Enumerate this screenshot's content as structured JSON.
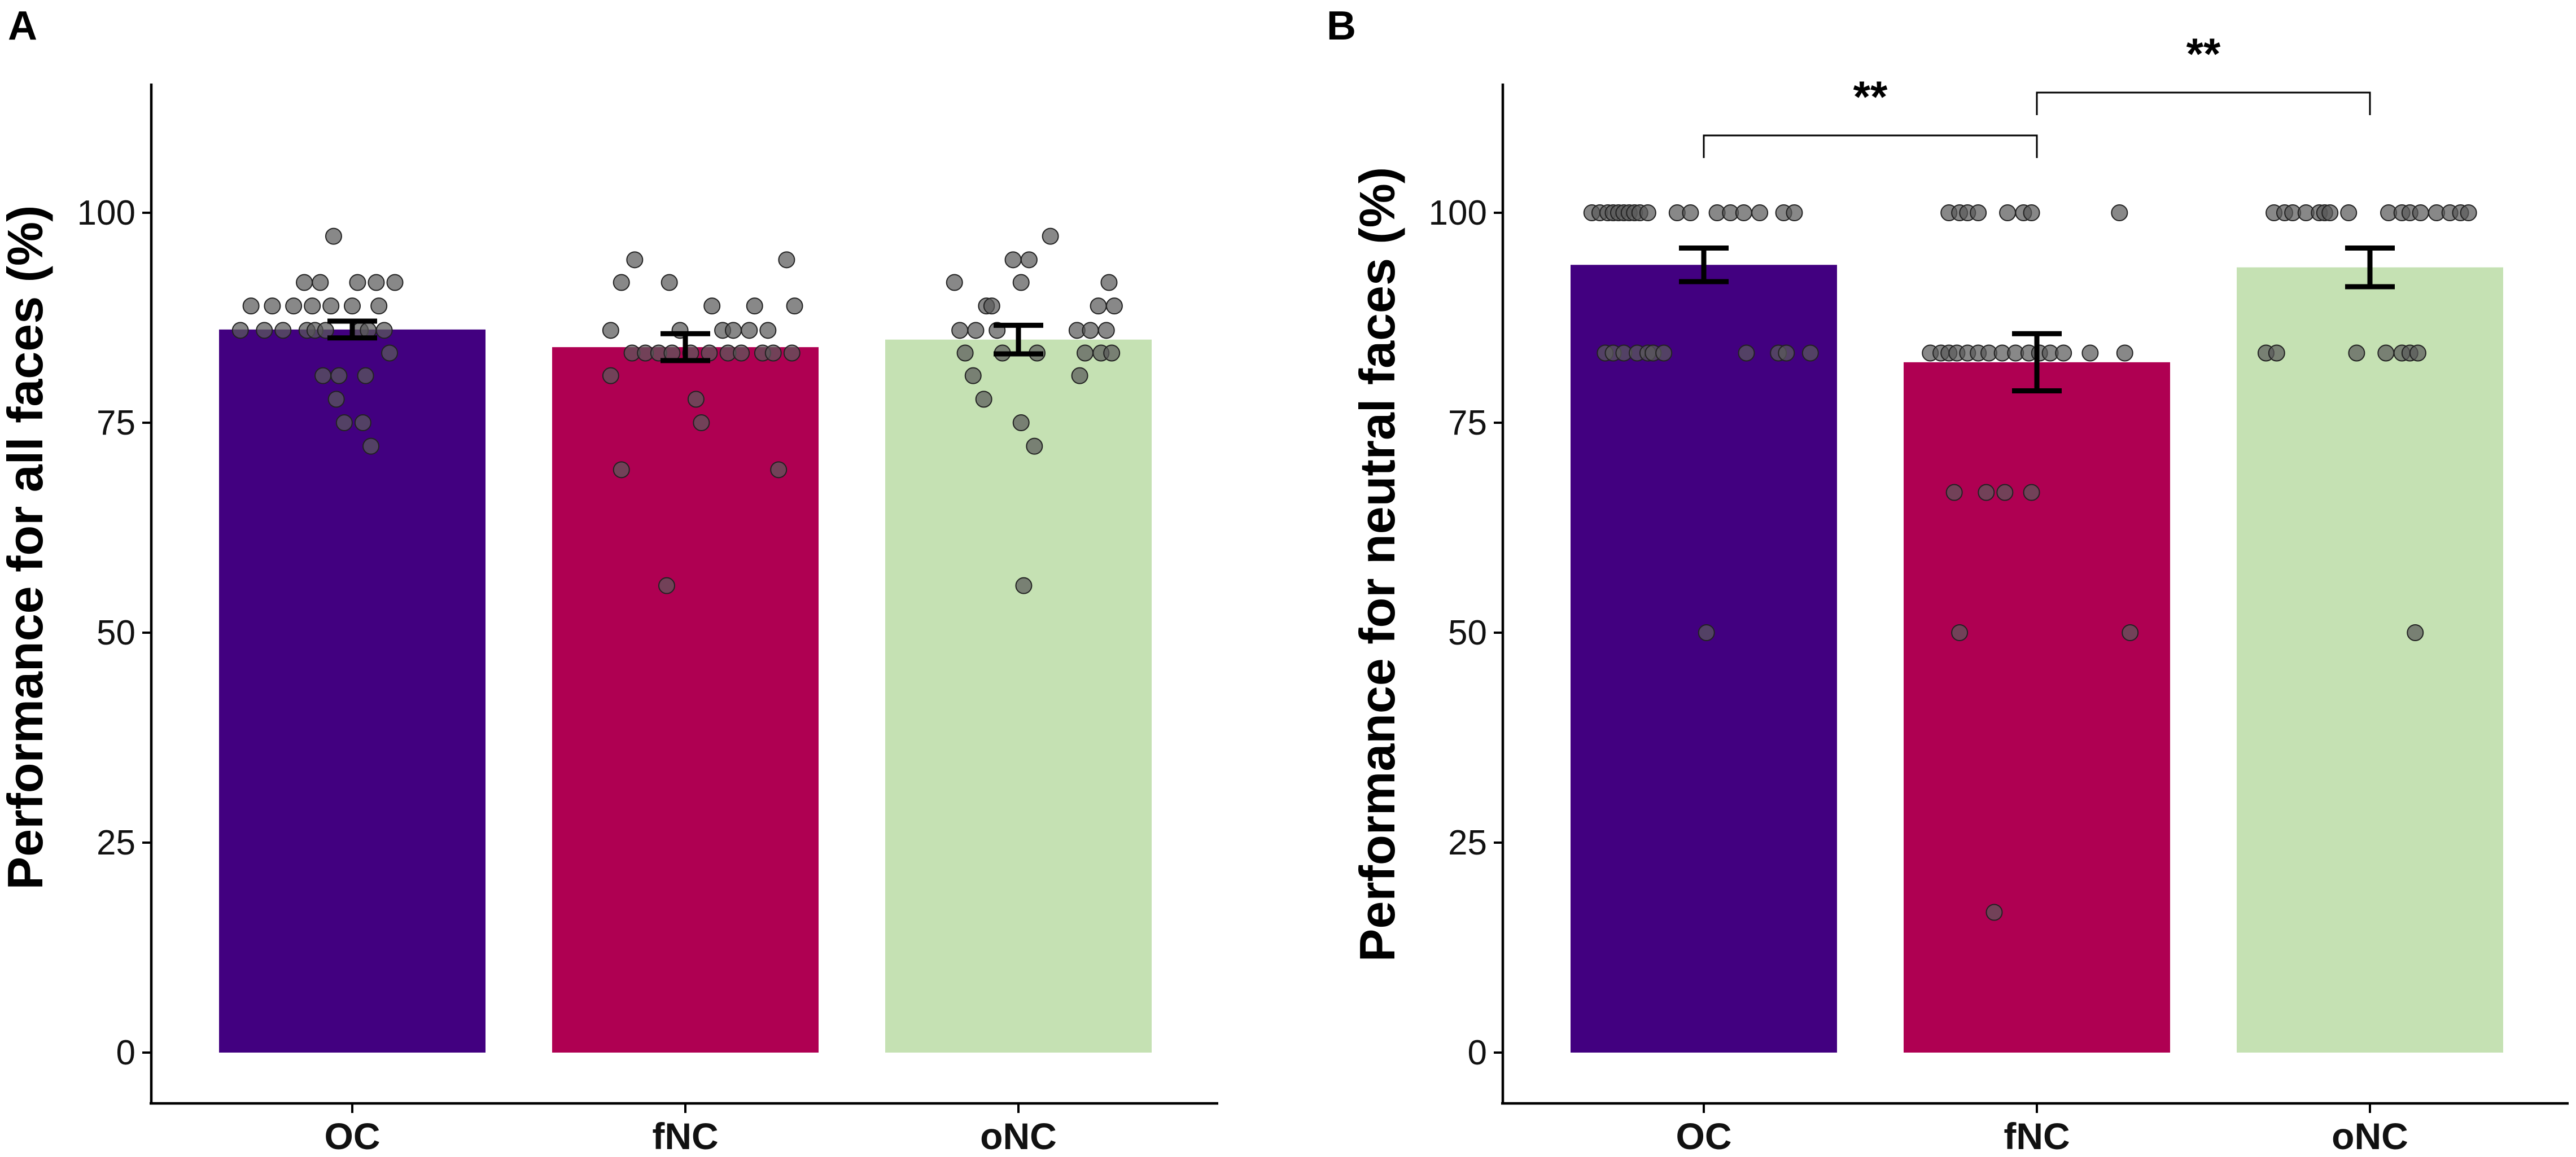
{
  "chart_data": [
    {
      "type": "bar",
      "panel": "A",
      "categories": [
        "OC",
        "fNC",
        "oNC"
      ],
      "values": [
        86.1,
        84.0,
        84.9
      ],
      "errors": [
        [
          85.1,
          87.1
        ],
        [
          82.4,
          85.6
        ],
        [
          83.2,
          86.6
        ]
      ],
      "colors": [
        "#420080",
        "#af0052",
        "#c5e1b3"
      ],
      "xlabel": "",
      "ylabel": "Performance for all faces (%)",
      "ylim": [
        0,
        115
      ],
      "yticks": [
        0,
        25,
        50,
        75,
        100
      ],
      "points": [
        [
          86,
          88.9,
          86,
          88.9,
          86,
          88.9,
          91.7,
          86,
          88.9,
          86,
          91.7,
          86,
          88.9,
          97.2,
          80.6,
          77.8,
          80.6,
          75,
          88.9,
          91.7,
          86,
          75,
          80.6,
          86,
          72.2,
          91.7,
          88.9,
          86,
          83.3,
          91.7
        ],
        [
          86,
          91.7,
          80.6,
          83.3,
          83.3,
          94.4,
          83.3,
          91.7,
          69.4,
          55.6,
          83.3,
          86,
          77.8,
          83.3,
          75,
          83.3,
          88.9,
          86,
          83.3,
          86,
          83.3,
          86,
          88.9,
          83.3,
          86,
          83.3,
          69.4,
          94.4,
          83.3,
          88.9
        ],
        [
          91.7,
          86,
          83.3,
          86,
          80.6,
          88.9,
          77.8,
          88.9,
          86,
          83.3,
          94.4,
          91.7,
          75,
          94.4,
          72.2,
          55.6,
          83.3,
          97.2,
          86,
          80.6,
          83.3,
          86,
          88.9,
          83.3,
          86,
          91.7,
          83.3,
          88.9
        ]
      ],
      "point_x_offsets": [
        [
          -0.42,
          -0.38,
          -0.33,
          -0.3,
          -0.26,
          -0.22,
          -0.18,
          -0.17,
          -0.15,
          -0.14,
          -0.12,
          -0.1,
          -0.08,
          -0.07,
          -0.11,
          -0.06,
          -0.05,
          -0.03,
          0,
          0.02,
          0.03,
          0.04,
          0.05,
          0.06,
          0.07,
          0.09,
          0.1,
          0.12,
          0.14,
          0.16
        ],
        [
          -0.28,
          -0.24,
          -0.28,
          -0.2,
          -0.15,
          -0.19,
          -0.1,
          -0.06,
          -0.24,
          -0.07,
          -0.05,
          -0.02,
          0.04,
          0.02,
          0.06,
          0.09,
          0.1,
          0.14,
          0.16,
          0.18,
          0.21,
          0.24,
          0.26,
          0.29,
          0.31,
          0.33,
          0.35,
          0.38,
          0.4,
          0.41
        ],
        [
          -0.24,
          -0.22,
          -0.2,
          -0.16,
          -0.17,
          -0.12,
          -0.13,
          -0.1,
          -0.08,
          -0.06,
          -0.02,
          0.01,
          0.01,
          0.04,
          0.06,
          0.02,
          0.07,
          0.12,
          0.22,
          0.23,
          0.25,
          0.27,
          0.3,
          0.31,
          0.33,
          0.34,
          0.35,
          0.36
        ]
      ],
      "significance": []
    },
    {
      "type": "bar",
      "panel": "B",
      "categories": [
        "OC",
        "fNC",
        "oNC"
      ],
      "values": [
        93.8,
        82.2,
        93.5
      ],
      "errors": [
        [
          91.8,
          95.8
        ],
        [
          78.8,
          85.6
        ],
        [
          91.2,
          95.8
        ]
      ],
      "colors": [
        "#420080",
        "#af0052",
        "#c5e1b3"
      ],
      "xlabel": "",
      "ylabel": "Performance for neutral faces (%)",
      "ylim": [
        0,
        115
      ],
      "yticks": [
        0,
        25,
        50,
        75,
        100
      ],
      "points": [
        [
          100,
          100,
          100,
          100,
          100,
          100,
          100,
          100,
          100,
          100,
          100,
          100,
          100,
          100,
          100,
          100,
          83.3,
          83.3,
          83.3,
          83.3,
          83.3,
          83.3,
          83.3,
          83.3,
          83.3,
          83.3,
          50,
          100,
          100,
          83.3
        ],
        [
          100,
          100,
          100,
          100,
          100,
          100,
          100,
          83.3,
          83.3,
          83.3,
          83.3,
          83.3,
          83.3,
          83.3,
          83.3,
          83.3,
          83.3,
          83.3,
          83.3,
          83.3,
          83.3,
          66.7,
          66.7,
          66.7,
          66.7,
          50,
          50,
          16.7,
          83.3,
          100
        ],
        [
          100,
          100,
          100,
          100,
          100,
          100,
          100,
          100,
          100,
          100,
          100,
          100,
          100,
          100,
          83.3,
          83.3,
          83.3,
          83.3,
          83.3,
          83.3,
          83.3,
          50,
          100,
          100
        ]
      ],
      "point_x_offsets": [
        [
          -0.42,
          -0.39,
          -0.36,
          -0.34,
          -0.32,
          -0.3,
          -0.28,
          -0.26,
          -0.24,
          -0.21,
          -0.1,
          -0.05,
          0.05,
          0.1,
          0.15,
          0.21,
          -0.37,
          -0.34,
          -0.3,
          -0.25,
          -0.21,
          -0.19,
          -0.15,
          0.16,
          0.28,
          0.31,
          0.01,
          0.3,
          0.34,
          0.4
        ],
        [
          -0.33,
          -0.29,
          -0.26,
          -0.22,
          -0.11,
          -0.05,
          -0.02,
          -0.4,
          -0.36,
          -0.33,
          -0.3,
          -0.26,
          -0.22,
          -0.18,
          -0.13,
          -0.08,
          -0.03,
          0.01,
          0.05,
          0.1,
          0.2,
          -0.31,
          -0.19,
          -0.12,
          -0.02,
          -0.29,
          0.35,
          -0.16,
          0.33,
          0.31
        ],
        [
          -0.36,
          -0.32,
          -0.29,
          -0.24,
          -0.19,
          -0.17,
          -0.15,
          -0.08,
          0.07,
          0.12,
          0.15,
          0.19,
          0.25,
          0.3,
          -0.39,
          -0.35,
          -0.05,
          0.06,
          0.12,
          0.15,
          0.18,
          0.17,
          0.34,
          0.37
        ]
      ],
      "significance": [
        {
          "from": "OC",
          "to": "fNC",
          "label": "**"
        },
        {
          "from": "fNC",
          "to": "oNC",
          "label": "**"
        }
      ]
    }
  ]
}
